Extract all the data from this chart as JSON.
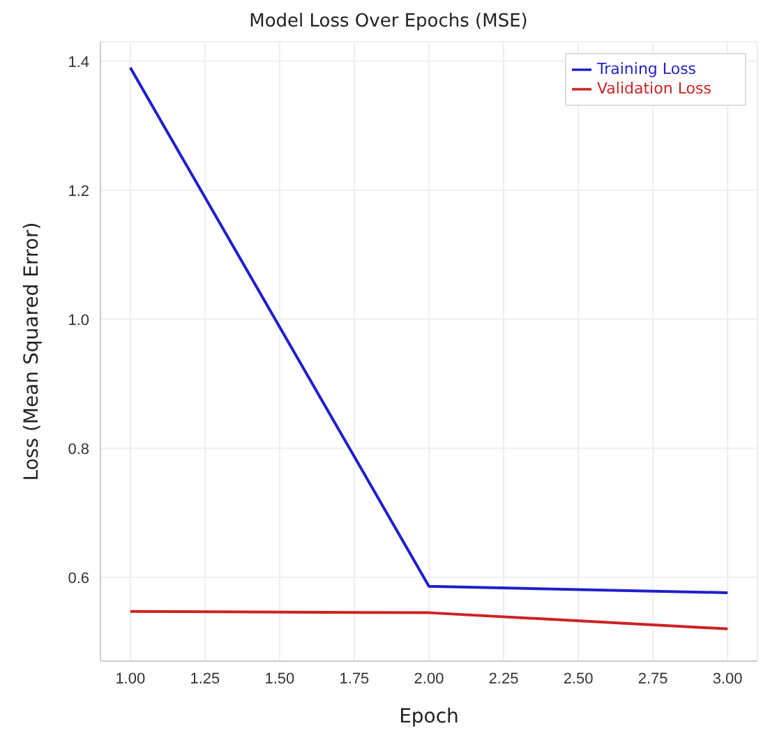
{
  "chart_data": {
    "type": "line",
    "title": "Model Loss Over Epochs (MSE)",
    "xlabel": "Epoch",
    "ylabel": "Loss (Mean Squared Error)",
    "x": [
      1,
      2,
      3
    ],
    "series": [
      {
        "name": "Training Loss",
        "color": "#1f1fcc",
        "values": [
          1.39,
          0.586,
          0.576
        ]
      },
      {
        "name": "Validation Loss",
        "color": "#cc2222",
        "values": [
          0.547,
          0.545,
          0.52
        ]
      }
    ],
    "xlim": [
      0.9,
      3.1
    ],
    "xticks": [
      {
        "value": 1,
        "label": "1.00"
      },
      {
        "value": 1.25,
        "label": "1.25"
      },
      {
        "value": 1.5,
        "label": "1.50"
      },
      {
        "value": 1.75,
        "label": "1.75"
      },
      {
        "value": 2,
        "label": "2.00"
      },
      {
        "value": 2.25,
        "label": "2.25"
      },
      {
        "value": 2.5,
        "label": "2.50"
      },
      {
        "value": 2.75,
        "label": "2.75"
      },
      {
        "value": 3,
        "label": "3.00"
      }
    ],
    "ylim": [
      0.47,
      1.43
    ],
    "yticks": [
      0.6,
      0.8,
      {
        "value": 1,
        "label": "1.0"
      },
      1.2,
      1.4
    ],
    "grid": true,
    "legend": "top right",
    "marker": "none",
    "line_style": "solid"
  }
}
